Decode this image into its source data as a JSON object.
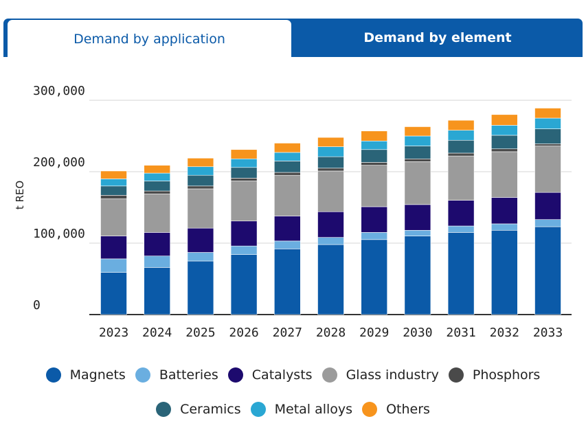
{
  "tabs": [
    {
      "label": "Demand by application",
      "active": true
    },
    {
      "label": "Demand by element",
      "active": false
    }
  ],
  "chart_data": {
    "type": "bar",
    "stacked": true,
    "title": "",
    "xlabel": "",
    "ylabel": "t REO",
    "ylim": [
      0,
      300000
    ],
    "yticks": [
      0,
      100000,
      200000,
      300000
    ],
    "ytick_labels": [
      "0",
      "100,000",
      "200,000",
      "300,000"
    ],
    "grid": true,
    "legend_position": "bottom",
    "categories": [
      "2023",
      "2024",
      "2025",
      "2026",
      "2027",
      "2028",
      "2029",
      "2030",
      "2031",
      "2032",
      "2033"
    ],
    "series": [
      {
        "name": "Magnets",
        "color": "#0b5aa8",
        "values": [
          59000,
          66000,
          75000,
          84000,
          92000,
          98000,
          105000,
          110000,
          115000,
          118000,
          123000
        ]
      },
      {
        "name": "Batteries",
        "color": "#6aaee0",
        "values": [
          19000,
          16000,
          12000,
          12000,
          11000,
          10000,
          10000,
          8000,
          9000,
          9000,
          10000
        ]
      },
      {
        "name": "Catalysts",
        "color": "#1d0a6e",
        "values": [
          32000,
          33000,
          34000,
          35000,
          35000,
          36000,
          36000,
          36000,
          36000,
          37000,
          38000
        ]
      },
      {
        "name": "Glass industry",
        "color": "#9b9b9b",
        "values": [
          52000,
          54000,
          55000,
          56000,
          57000,
          57000,
          58000,
          60000,
          62000,
          64000,
          65000
        ]
      },
      {
        "name": "Phosphors",
        "color": "#4a4a4a",
        "values": [
          5000,
          4000,
          4000,
          4000,
          4000,
          4000,
          4000,
          4000,
          4000,
          4000,
          3000
        ]
      },
      {
        "name": "Ceramics",
        "color": "#2a6478",
        "values": [
          13000,
          14000,
          15000,
          15000,
          16000,
          16000,
          18000,
          18000,
          18000,
          19000,
          21000
        ]
      },
      {
        "name": "Metal alloys",
        "color": "#2aa7d3",
        "values": [
          10000,
          11000,
          12000,
          12000,
          12000,
          14000,
          12000,
          14000,
          14000,
          14000,
          15000
        ]
      },
      {
        "name": "Others",
        "color": "#f7941d",
        "values": [
          11000,
          11000,
          12000,
          13000,
          13000,
          13000,
          14000,
          13000,
          14000,
          15000,
          14000
        ]
      }
    ]
  }
}
